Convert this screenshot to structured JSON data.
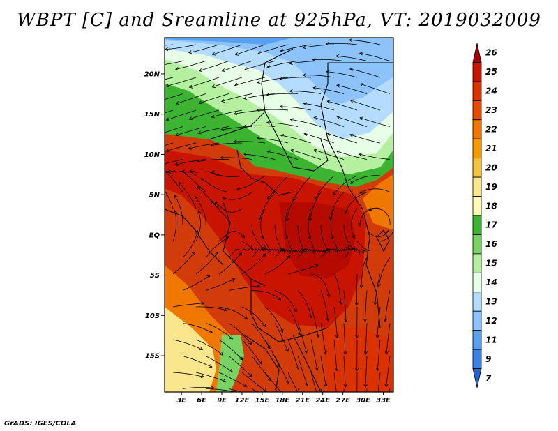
{
  "title": "WBPT [C] and Sreamline at 925hPa, VT: 2019032009",
  "credit": "GrADS: IGES/COLA",
  "map": {
    "lat_labels": [
      "20N",
      "15N",
      "10N",
      "5N",
      "EQ",
      "5S",
      "10S",
      "15S"
    ],
    "lon_labels": [
      "3E",
      "6E",
      "9E",
      "12E",
      "15E",
      "18E",
      "21E",
      "24E",
      "27E",
      "30E",
      "33E"
    ],
    "lat_values": [
      20,
      15,
      10,
      5,
      0,
      -5,
      -10,
      -15
    ],
    "lon_values": [
      3,
      6,
      9,
      12,
      15,
      18,
      21,
      24,
      27,
      30,
      33
    ],
    "lon_range": [
      0.5,
      34.5
    ],
    "lat_range": [
      -19.5,
      24.5
    ]
  },
  "colorbar": {
    "labels": [
      "26",
      "25",
      "24",
      "23",
      "22",
      "21",
      "20",
      "19",
      "18",
      "17",
      "16",
      "15",
      "14",
      "13",
      "12",
      "11",
      "9",
      "7"
    ],
    "colors": [
      "#a50000",
      "#c81400",
      "#dc3200",
      "#e64b00",
      "#f07800",
      "#f59b00",
      "#f5c341",
      "#fae68c",
      "#fffab4",
      "#3cb432",
      "#78d264",
      "#b4f0a0",
      "#e6ffe6",
      "#b4dcff",
      "#8cc3fa",
      "#5aa0f0",
      "#3c82e6",
      "#1e64d2"
    ]
  }
}
